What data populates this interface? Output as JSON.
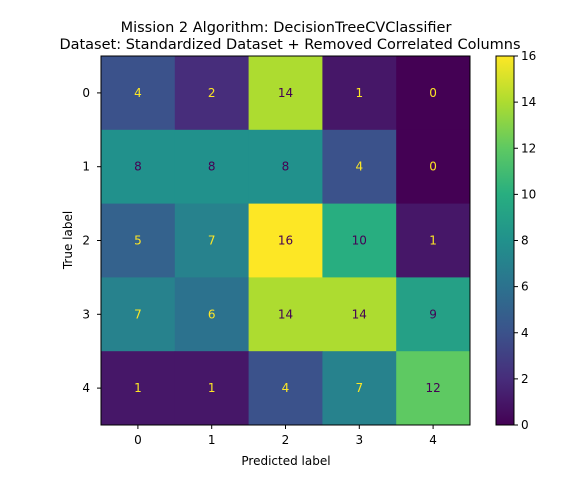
{
  "chart_data": {
    "type": "heatmap",
    "title_line1": "Mission 2 Algorithm: DecisionTreeCVClassifier",
    "title_line2": "Dataset: Standardized Dataset + Removed Correlated Columns",
    "xlabel": "Predicted label",
    "ylabel": "True label",
    "x_categories": [
      "0",
      "1",
      "2",
      "3",
      "4"
    ],
    "y_categories": [
      "0",
      "1",
      "2",
      "3",
      "4"
    ],
    "matrix": [
      [
        4,
        2,
        14,
        1,
        0
      ],
      [
        8,
        8,
        8,
        4,
        0
      ],
      [
        5,
        7,
        16,
        10,
        1
      ],
      [
        7,
        6,
        14,
        14,
        9
      ],
      [
        1,
        1,
        4,
        7,
        12
      ]
    ],
    "colorbar": {
      "min": 0,
      "max": 16,
      "ticks": [
        "0",
        "2",
        "4",
        "6",
        "8",
        "10",
        "12",
        "14",
        "16"
      ],
      "colormap": "viridis"
    }
  }
}
